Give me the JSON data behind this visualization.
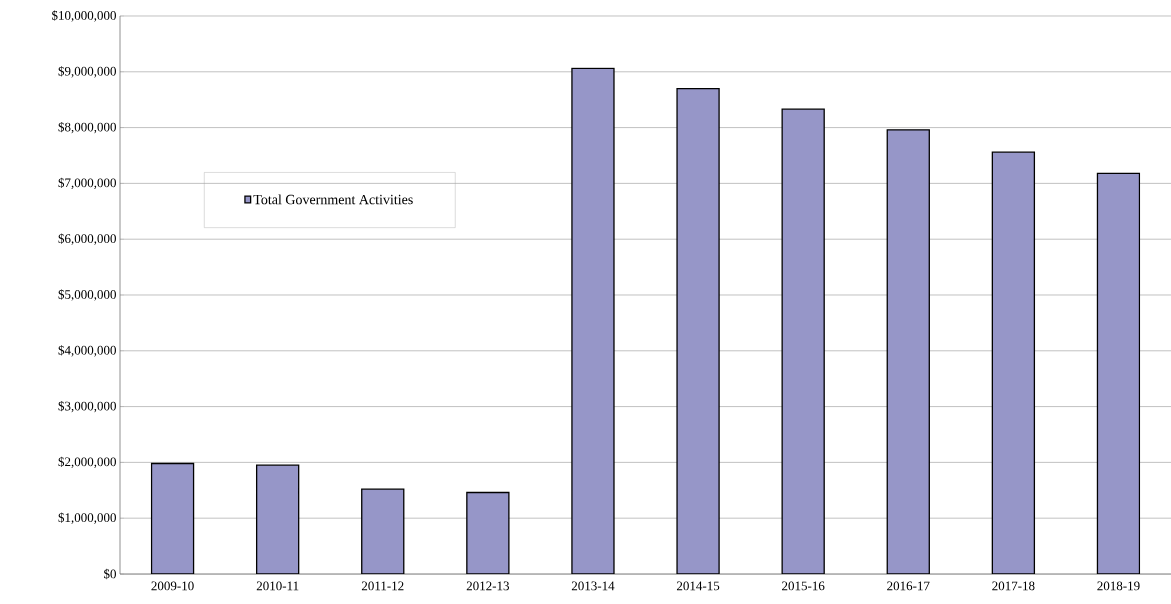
{
  "chart_data": {
    "type": "bar",
    "categories": [
      "2009-10",
      "2010-11",
      "2011-12",
      "2012-13",
      "2013-14",
      "2014-15",
      "2015-16",
      "2016-17",
      "2017-18",
      "2018-19"
    ],
    "series": [
      {
        "name": "Total Government Activities",
        "color": "#9696c8",
        "values": [
          1980000,
          1950000,
          1520000,
          1460000,
          9060000,
          8700000,
          8330000,
          7960000,
          7560000,
          7180000
        ]
      }
    ],
    "ylim": [
      0,
      10000000
    ],
    "yticks": [
      {
        "value": 0,
        "label": "$0"
      },
      {
        "value": 1000000,
        "label": "$1,000,000"
      },
      {
        "value": 2000000,
        "label": "$2,000,000"
      },
      {
        "value": 3000000,
        "label": "$3,000,000"
      },
      {
        "value": 4000000,
        "label": "$4,000,000"
      },
      {
        "value": 5000000,
        "label": "$5,000,000"
      },
      {
        "value": 6000000,
        "label": "$6,000,000"
      },
      {
        "value": 7000000,
        "label": "$7,000,000"
      },
      {
        "value": 8000000,
        "label": "$8,000,000"
      },
      {
        "value": 9000000,
        "label": "$9,000,000"
      },
      {
        "value": 10000000,
        "label": "$10,000,000"
      }
    ],
    "grid": "y",
    "legend": "top left"
  }
}
